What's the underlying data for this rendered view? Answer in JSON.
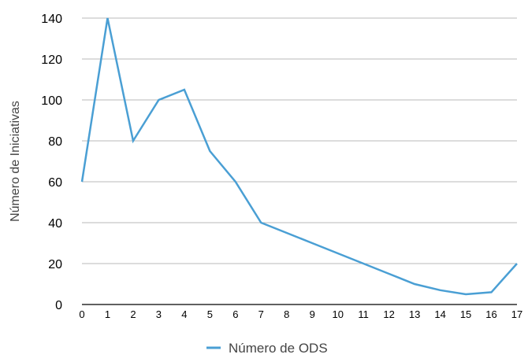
{
  "chart_data": {
    "type": "line",
    "title": "",
    "xlabel": "",
    "ylabel": "Número de Iniciativas",
    "x": [
      0,
      1,
      2,
      3,
      4,
      5,
      6,
      7,
      8,
      9,
      10,
      11,
      12,
      13,
      14,
      15,
      16,
      17
    ],
    "series": [
      {
        "name": "Número de ODS",
        "values": [
          60,
          140,
          80,
          100,
          105,
          75,
          60,
          40,
          35,
          30,
          25,
          20,
          15,
          10,
          7,
          5,
          6,
          20
        ],
        "color": "#4a9fd4"
      }
    ],
    "xlim": [
      0,
      17
    ],
    "ylim": [
      0,
      140
    ],
    "y_ticks": [
      0,
      20,
      40,
      60,
      80,
      100,
      120,
      140
    ],
    "x_ticks": [
      0,
      1,
      2,
      3,
      4,
      5,
      6,
      7,
      8,
      9,
      10,
      11,
      12,
      13,
      14,
      15,
      16,
      17
    ],
    "grid": "horizontal",
    "legend_position": "bottom",
    "gridline_color": "#b8b8b8",
    "axis_color": "#000000"
  }
}
